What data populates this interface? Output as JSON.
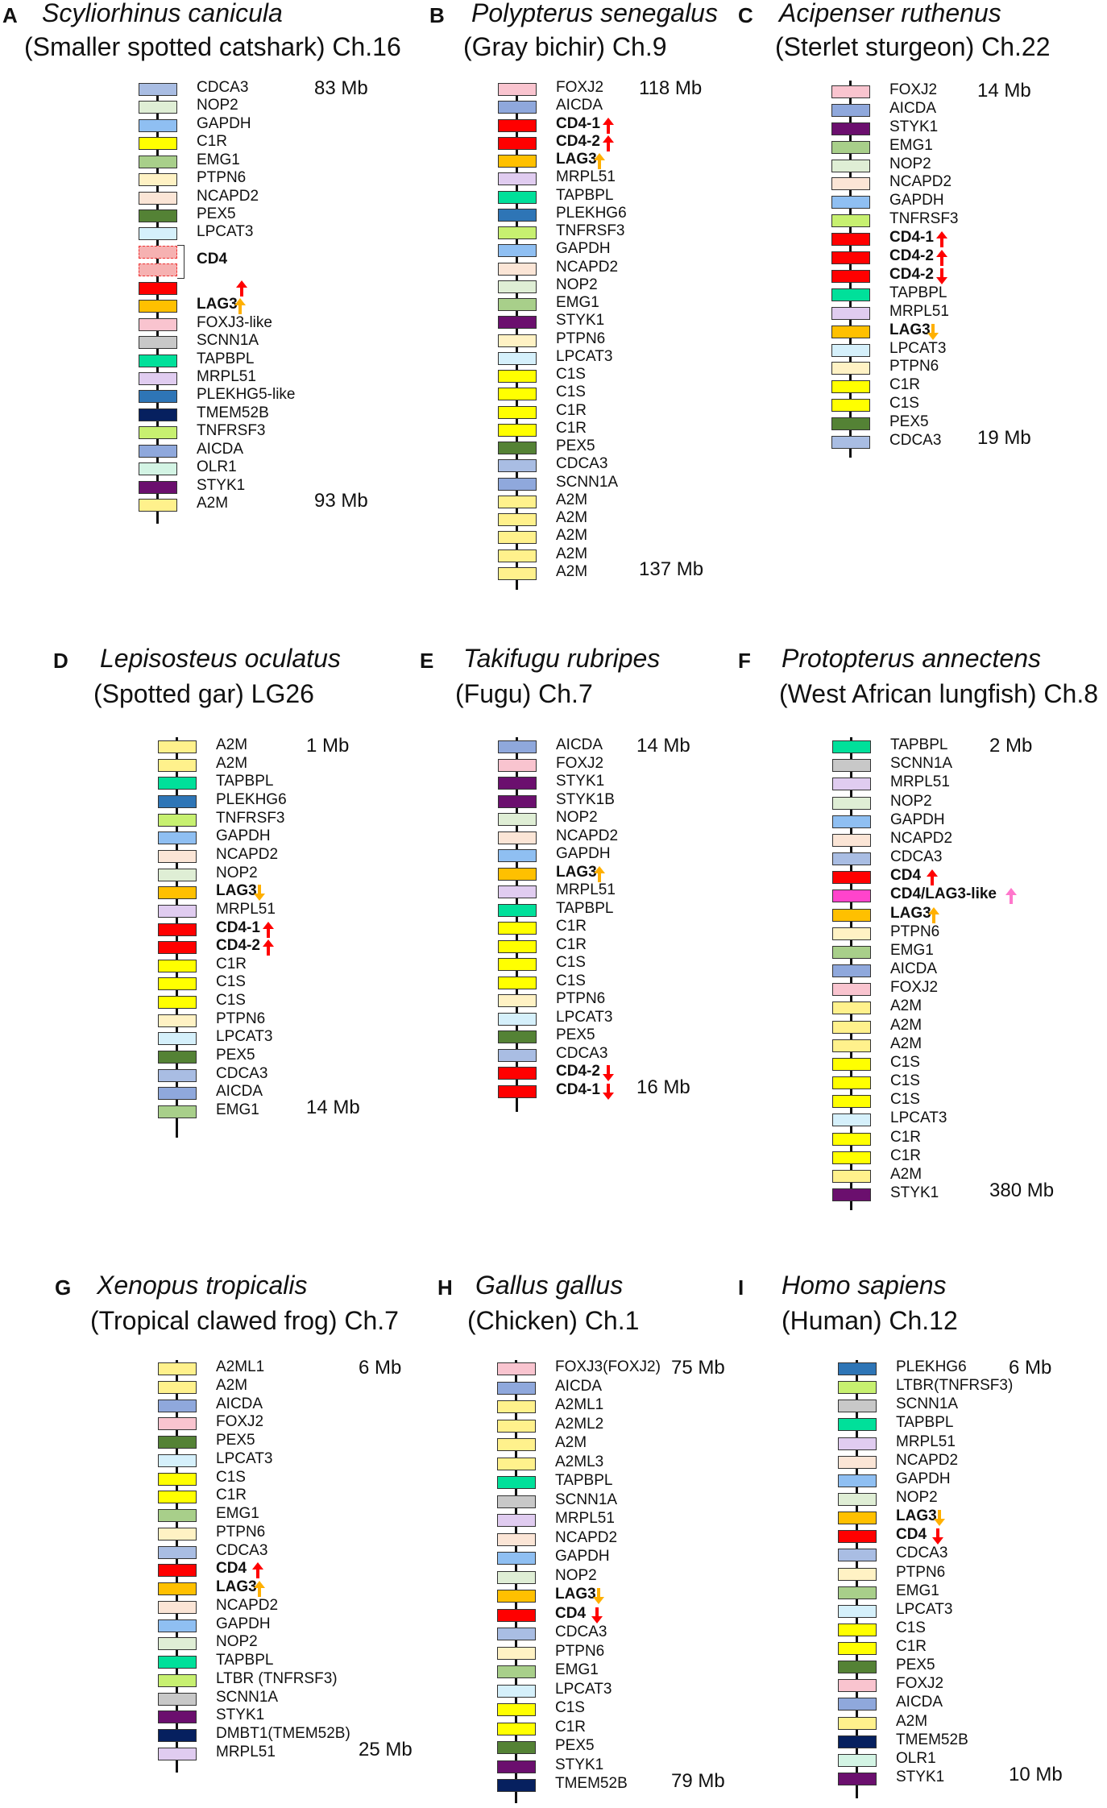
{
  "colors": {
    "CDCA3": "#a9bde3",
    "NOP2": "#dfeed5",
    "GAPDH": "#8fbff2",
    "C1R": "#ffff00",
    "C1S": "#ffff00",
    "EMG1": "#a8cf8a",
    "PTPN6": "#fff2c4",
    "NCAPD2": "#fbe5d6",
    "PEX5": "#548235",
    "LPCAT3": "#d5f0fb",
    "CD4": "#ff0000",
    "LAG3": "#ffc000",
    "FOXJ3": "#f9c4cf",
    "FOXJ2": "#f9c4cf",
    "SCNN1A": "#c8c8c8",
    "TAPBPL": "#00e09a",
    "MRPL51": "#e0ccf0",
    "PLEKHG": "#2e75b6",
    "TMEM52B": "#06205f",
    "TNFRSF3": "#c7f070",
    "AICDA": "#8fa8dc",
    "OLR1": "#d3f4e4",
    "STYK1": "#6b0f6e",
    "A2M": "#fff18c",
    "CD4LAG3": "#ff44cc",
    "DMBT1": "#06205f"
  },
  "arrow_colors": {
    "red": "#ff0000",
    "orange": "#ffb000",
    "pink": "#ff77cc"
  },
  "panels": [
    {
      "id": "A",
      "letter": "A",
      "species": "Scyliorhinus canicula",
      "common": "(Smaller spotted catshark)  Ch.16",
      "mb_top": "83 Mb",
      "mb_bottom": "93 Mb",
      "genes": [
        {
          "name": "CDCA3",
          "c": "CDCA3"
        },
        {
          "name": "NOP2",
          "c": "NOP2"
        },
        {
          "name": "GAPDH",
          "c": "GAPDH"
        },
        {
          "name": "C1R",
          "c": "C1R"
        },
        {
          "name": "EMG1",
          "c": "EMG1"
        },
        {
          "name": "PTPN6",
          "c": "PTPN6"
        },
        {
          "name": "NCAPD2",
          "c": "NCAPD2"
        },
        {
          "name": "PEX5",
          "c": "PEX5"
        },
        {
          "name": "LPCAT3",
          "c": "LPCAT3"
        },
        {
          "name": "",
          "c": "dashed"
        },
        {
          "name": "CD4",
          "c": "dashed",
          "bold": true
        },
        {
          "name": "",
          "c": "CD4",
          "arrow": "up",
          "ac": "red"
        },
        {
          "name": "LAG3",
          "c": "LAG3",
          "bold": true,
          "arrow": "up",
          "ac": "orange"
        },
        {
          "name": "FOXJ3-like",
          "c": "FOXJ3"
        },
        {
          "name": "SCNN1A",
          "c": "SCNN1A"
        },
        {
          "name": "TAPBPL",
          "c": "TAPBPL"
        },
        {
          "name": "MRPL51",
          "c": "MRPL51"
        },
        {
          "name": "PLEKHG5-like",
          "c": "PLEKHG"
        },
        {
          "name": "TMEM52B",
          "c": "TMEM52B"
        },
        {
          "name": "TNFRSF3",
          "c": "TNFRSF3"
        },
        {
          "name": "AICDA",
          "c": "AICDA"
        },
        {
          "name": "OLR1",
          "c": "OLR1"
        },
        {
          "name": "STYK1",
          "c": "STYK1"
        },
        {
          "name": "A2M",
          "c": "A2M"
        }
      ]
    },
    {
      "id": "B",
      "letter": "B",
      "species": "Polypterus senegalus",
      "common": "(Gray bichir) Ch.9",
      "mb_top": "118 Mb",
      "mb_bottom": "137 Mb",
      "genes": [
        {
          "name": "FOXJ2",
          "c": "FOXJ2"
        },
        {
          "name": "AICDA",
          "c": "AICDA"
        },
        {
          "name": "CD4-1",
          "c": "CD4",
          "bold": true,
          "arrow": "up",
          "ac": "red"
        },
        {
          "name": "CD4-2",
          "c": "CD4",
          "bold": true,
          "arrow": "up",
          "ac": "red"
        },
        {
          "name": "LAG3",
          "c": "LAG3",
          "bold": true,
          "arrow": "up",
          "ac": "orange"
        },
        {
          "name": "MRPL51",
          "c": "MRPL51"
        },
        {
          "name": "TAPBPL",
          "c": "TAPBPL"
        },
        {
          "name": "PLEKHG6",
          "c": "PLEKHG"
        },
        {
          "name": "TNFRSF3",
          "c": "TNFRSF3"
        },
        {
          "name": "GAPDH",
          "c": "GAPDH"
        },
        {
          "name": "NCAPD2",
          "c": "NCAPD2"
        },
        {
          "name": "NOP2",
          "c": "NOP2"
        },
        {
          "name": "EMG1",
          "c": "EMG1"
        },
        {
          "name": "STYK1",
          "c": "STYK1"
        },
        {
          "name": "PTPN6",
          "c": "PTPN6"
        },
        {
          "name": "LPCAT3",
          "c": "LPCAT3"
        },
        {
          "name": "C1S",
          "c": "C1S"
        },
        {
          "name": "C1S",
          "c": "C1S"
        },
        {
          "name": "C1R",
          "c": "C1R"
        },
        {
          "name": "C1R",
          "c": "C1R"
        },
        {
          "name": "PEX5",
          "c": "PEX5"
        },
        {
          "name": "CDCA3",
          "c": "CDCA3"
        },
        {
          "name": "SCNN1A",
          "c": "AICDA"
        },
        {
          "name": "A2M",
          "c": "A2M"
        },
        {
          "name": "A2M",
          "c": "A2M"
        },
        {
          "name": "A2M",
          "c": "A2M"
        },
        {
          "name": "A2M",
          "c": "A2M"
        },
        {
          "name": "A2M",
          "c": "A2M"
        }
      ]
    },
    {
      "id": "C",
      "letter": "C",
      "species": "Acipenser ruthenus",
      "common": "(Sterlet sturgeon) Ch.22",
      "mb_top": "14 Mb",
      "mb_bottom": "19 Mb",
      "genes": [
        {
          "name": "FOXJ2",
          "c": "FOXJ2"
        },
        {
          "name": "AICDA",
          "c": "AICDA"
        },
        {
          "name": "STYK1",
          "c": "STYK1"
        },
        {
          "name": "EMG1",
          "c": "EMG1"
        },
        {
          "name": "NOP2",
          "c": "NOP2"
        },
        {
          "name": "NCAPD2",
          "c": "NCAPD2"
        },
        {
          "name": "GAPDH",
          "c": "GAPDH"
        },
        {
          "name": "TNFRSF3",
          "c": "TNFRSF3"
        },
        {
          "name": "CD4-1",
          "c": "CD4",
          "bold": true,
          "arrow": "up",
          "ac": "red"
        },
        {
          "name": "CD4-2",
          "c": "CD4",
          "bold": true,
          "arrow": "up",
          "ac": "red"
        },
        {
          "name": "CD4-2",
          "c": "CD4",
          "bold": true,
          "arrow": "down",
          "ac": "red"
        },
        {
          "name": "TAPBPL",
          "c": "TAPBPL"
        },
        {
          "name": "MRPL51",
          "c": "MRPL51"
        },
        {
          "name": "LAG3",
          "c": "LAG3",
          "bold": true,
          "arrow": "down",
          "ac": "orange"
        },
        {
          "name": "LPCAT3",
          "c": "LPCAT3"
        },
        {
          "name": "PTPN6",
          "c": "PTPN6"
        },
        {
          "name": "C1R",
          "c": "C1R"
        },
        {
          "name": "C1S",
          "c": "C1S"
        },
        {
          "name": "PEX5",
          "c": "PEX5"
        },
        {
          "name": "CDCA3",
          "c": "CDCA3"
        }
      ]
    },
    {
      "id": "D",
      "letter": "D",
      "species": "Lepisosteus oculatus",
      "common": "(Spotted gar) LG26",
      "mb_top": "1 Mb",
      "mb_bottom": "14 Mb",
      "genes": [
        {
          "name": "A2M",
          "c": "A2M"
        },
        {
          "name": "A2M",
          "c": "A2M"
        },
        {
          "name": "TAPBPL",
          "c": "TAPBPL"
        },
        {
          "name": "PLEKHG6",
          "c": "PLEKHG"
        },
        {
          "name": "TNFRSF3",
          "c": "TNFRSF3"
        },
        {
          "name": "GAPDH",
          "c": "GAPDH"
        },
        {
          "name": "NCAPD2",
          "c": "NCAPD2"
        },
        {
          "name": "NOP2",
          "c": "NOP2"
        },
        {
          "name": "LAG3",
          "c": "LAG3",
          "bold": true,
          "arrow": "down",
          "ac": "orange"
        },
        {
          "name": "MRPL51",
          "c": "MRPL51"
        },
        {
          "name": "CD4-1",
          "c": "CD4",
          "bold": true,
          "arrow": "up",
          "ac": "red"
        },
        {
          "name": "CD4-2",
          "c": "CD4",
          "bold": true,
          "arrow": "up",
          "ac": "red"
        },
        {
          "name": "C1R",
          "c": "C1R"
        },
        {
          "name": "C1S",
          "c": "C1S"
        },
        {
          "name": "C1S",
          "c": "C1S"
        },
        {
          "name": "PTPN6",
          "c": "PTPN6"
        },
        {
          "name": "LPCAT3",
          "c": "LPCAT3"
        },
        {
          "name": "PEX5",
          "c": "PEX5"
        },
        {
          "name": "CDCA3",
          "c": "CDCA3"
        },
        {
          "name": "AICDA",
          "c": "AICDA"
        },
        {
          "name": "EMG1",
          "c": "EMG1"
        }
      ]
    },
    {
      "id": "E",
      "letter": "E",
      "species": "Takifugu rubripes",
      "common": "(Fugu) Ch.7",
      "mb_top": "14 Mb",
      "mb_bottom": "16 Mb",
      "genes": [
        {
          "name": "AICDA",
          "c": "AICDA"
        },
        {
          "name": "FOXJ2",
          "c": "FOXJ2"
        },
        {
          "name": "STYK1",
          "c": "STYK1"
        },
        {
          "name": "STYK1B",
          "c": "STYK1"
        },
        {
          "name": "NOP2",
          "c": "NOP2"
        },
        {
          "name": "NCAPD2",
          "c": "NCAPD2"
        },
        {
          "name": "GAPDH",
          "c": "GAPDH"
        },
        {
          "name": "LAG3",
          "c": "LAG3",
          "bold": true,
          "arrow": "up",
          "ac": "orange"
        },
        {
          "name": "MRPL51",
          "c": "MRPL51"
        },
        {
          "name": "TAPBPL",
          "c": "TAPBPL"
        },
        {
          "name": "C1R",
          "c": "C1R"
        },
        {
          "name": "C1R",
          "c": "C1R"
        },
        {
          "name": "C1S",
          "c": "C1S"
        },
        {
          "name": "C1S",
          "c": "C1S"
        },
        {
          "name": "PTPN6",
          "c": "PTPN6"
        },
        {
          "name": "LPCAT3",
          "c": "LPCAT3"
        },
        {
          "name": "PEX5",
          "c": "PEX5"
        },
        {
          "name": "CDCA3",
          "c": "CDCA3"
        },
        {
          "name": "CD4-2",
          "c": "CD4",
          "bold": true,
          "arrow": "down",
          "ac": "red"
        },
        {
          "name": "CD4-1",
          "c": "CD4",
          "bold": true,
          "arrow": "down",
          "ac": "red"
        }
      ]
    },
    {
      "id": "F",
      "letter": "F",
      "species": "Protopterus annectens",
      "common": "(West African lungfish)  Ch.8",
      "mb_top": "2 Mb",
      "mb_bottom": "380 Mb",
      "genes": [
        {
          "name": "TAPBPL",
          "c": "TAPBPL"
        },
        {
          "name": "SCNN1A",
          "c": "SCNN1A"
        },
        {
          "name": "MRPL51",
          "c": "MRPL51"
        },
        {
          "name": "NOP2",
          "c": "NOP2"
        },
        {
          "name": "GAPDH",
          "c": "GAPDH"
        },
        {
          "name": "NCAPD2",
          "c": "NCAPD2"
        },
        {
          "name": "CDCA3",
          "c": "CDCA3"
        },
        {
          "name": "CD4",
          "c": "CD4",
          "bold": true,
          "arrow": "up",
          "ac": "red"
        },
        {
          "name": "CD4/LAG3-like",
          "c": "CD4LAG3",
          "bold": true,
          "arrow": "up",
          "ac": "pink"
        },
        {
          "name": "LAG3",
          "c": "LAG3",
          "bold": true,
          "arrow": "up",
          "ac": "orange"
        },
        {
          "name": "PTPN6",
          "c": "PTPN6"
        },
        {
          "name": "EMG1",
          "c": "EMG1"
        },
        {
          "name": "AICDA",
          "c": "AICDA"
        },
        {
          "name": "FOXJ2",
          "c": "FOXJ2"
        },
        {
          "name": "A2M",
          "c": "A2M"
        },
        {
          "name": "A2M",
          "c": "A2M"
        },
        {
          "name": "A2M",
          "c": "A2M"
        },
        {
          "name": "C1S",
          "c": "C1S"
        },
        {
          "name": "C1S",
          "c": "C1S"
        },
        {
          "name": "C1S",
          "c": "C1S"
        },
        {
          "name": "LPCAT3",
          "c": "LPCAT3"
        },
        {
          "name": "C1R",
          "c": "C1R"
        },
        {
          "name": "C1R",
          "c": "C1R"
        },
        {
          "name": "A2M",
          "c": "A2M"
        },
        {
          "name": "STYK1",
          "c": "STYK1"
        }
      ]
    },
    {
      "id": "G",
      "letter": "G",
      "species": "Xenopus tropicalis",
      "common": "(Tropical clawed frog) Ch.7",
      "mb_top": "6 Mb",
      "mb_bottom": "25 Mb",
      "genes": [
        {
          "name": "A2ML1",
          "c": "A2M"
        },
        {
          "name": "A2M",
          "c": "A2M"
        },
        {
          "name": "AICDA",
          "c": "AICDA"
        },
        {
          "name": "FOXJ2",
          "c": "FOXJ2"
        },
        {
          "name": "PEX5",
          "c": "PEX5"
        },
        {
          "name": "LPCAT3",
          "c": "LPCAT3"
        },
        {
          "name": "C1S",
          "c": "C1S"
        },
        {
          "name": "C1R",
          "c": "C1R"
        },
        {
          "name": "EMG1",
          "c": "EMG1"
        },
        {
          "name": "PTPN6",
          "c": "PTPN6"
        },
        {
          "name": "CDCA3",
          "c": "CDCA3"
        },
        {
          "name": "CD4",
          "c": "CD4",
          "bold": true,
          "arrow": "up",
          "ac": "red"
        },
        {
          "name": "LAG3",
          "c": "LAG3",
          "bold": true,
          "arrow": "up",
          "ac": "orange"
        },
        {
          "name": "NCAPD2",
          "c": "NCAPD2"
        },
        {
          "name": "GAPDH",
          "c": "GAPDH"
        },
        {
          "name": "NOP2",
          "c": "NOP2"
        },
        {
          "name": "TAPBPL",
          "c": "TAPBPL"
        },
        {
          "name": "LTBR (TNFRSF3)",
          "c": "TNFRSF3"
        },
        {
          "name": "SCNN1A",
          "c": "SCNN1A"
        },
        {
          "name": "STYK1",
          "c": "STYK1"
        },
        {
          "name": "DMBT1(TMEM52B)",
          "c": "DMBT1"
        },
        {
          "name": "MRPL51",
          "c": "MRPL51"
        }
      ]
    },
    {
      "id": "H",
      "letter": "H",
      "species": "Gallus gallus",
      "common": "(Chicken) Ch.1",
      "mb_top": "75 Mb",
      "mb_bottom": "79 Mb",
      "genes": [
        {
          "name": "FOXJ3(FOXJ2)",
          "c": "FOXJ3"
        },
        {
          "name": "AICDA",
          "c": "AICDA"
        },
        {
          "name": "A2ML1",
          "c": "A2M"
        },
        {
          "name": "A2ML2",
          "c": "A2M"
        },
        {
          "name": "A2M",
          "c": "A2M"
        },
        {
          "name": "A2ML3",
          "c": "A2M"
        },
        {
          "name": "TAPBPL",
          "c": "TAPBPL"
        },
        {
          "name": "SCNN1A",
          "c": "SCNN1A"
        },
        {
          "name": "MRPL51",
          "c": "MRPL51"
        },
        {
          "name": "NCAPD2",
          "c": "NCAPD2"
        },
        {
          "name": "GAPDH",
          "c": "GAPDH"
        },
        {
          "name": "NOP2",
          "c": "NOP2"
        },
        {
          "name": "LAG3",
          "c": "LAG3",
          "bold": true,
          "arrow": "down",
          "ac": "orange"
        },
        {
          "name": "CD4",
          "c": "CD4",
          "bold": true,
          "arrow": "down",
          "ac": "red"
        },
        {
          "name": "CDCA3",
          "c": "CDCA3"
        },
        {
          "name": "PTPN6",
          "c": "PTPN6"
        },
        {
          "name": "EMG1",
          "c": "EMG1"
        },
        {
          "name": "LPCAT3",
          "c": "LPCAT3"
        },
        {
          "name": "C1S",
          "c": "C1S"
        },
        {
          "name": "C1R",
          "c": "C1R"
        },
        {
          "name": "PEX5",
          "c": "PEX5"
        },
        {
          "name": "STYK1",
          "c": "STYK1"
        },
        {
          "name": "TMEM52B",
          "c": "TMEM52B"
        }
      ]
    },
    {
      "id": "I",
      "letter": "I",
      "species": "Homo sapiens",
      "common": "(Human) Ch.12",
      "mb_top": "6 Mb",
      "mb_bottom": "10 Mb",
      "genes": [
        {
          "name": "PLEKHG6",
          "c": "PLEKHG"
        },
        {
          "name": "LTBR(TNFRSF3)",
          "c": "TNFRSF3"
        },
        {
          "name": "SCNN1A",
          "c": "SCNN1A"
        },
        {
          "name": "TAPBPL",
          "c": "TAPBPL"
        },
        {
          "name": "MRPL51",
          "c": "MRPL51"
        },
        {
          "name": "NCAPD2",
          "c": "NCAPD2"
        },
        {
          "name": "GAPDH",
          "c": "GAPDH"
        },
        {
          "name": "NOP2",
          "c": "NOP2"
        },
        {
          "name": "LAG3",
          "c": "LAG3",
          "bold": true,
          "arrow": "down",
          "ac": "orange"
        },
        {
          "name": "CD4",
          "c": "CD4",
          "bold": true,
          "arrow": "down",
          "ac": "red"
        },
        {
          "name": "CDCA3",
          "c": "CDCA3"
        },
        {
          "name": "PTPN6",
          "c": "PTPN6"
        },
        {
          "name": "EMG1",
          "c": "EMG1"
        },
        {
          "name": "LPCAT3",
          "c": "LPCAT3"
        },
        {
          "name": "C1S",
          "c": "C1S"
        },
        {
          "name": "C1R",
          "c": "C1R"
        },
        {
          "name": "PEX5",
          "c": "PEX5"
        },
        {
          "name": "FOXJ2",
          "c": "FOXJ2"
        },
        {
          "name": "AICDA",
          "c": "AICDA"
        },
        {
          "name": "A2M",
          "c": "A2M"
        },
        {
          "name": "TMEM52B",
          "c": "TMEM52B"
        },
        {
          "name": "OLR1",
          "c": "OLR1"
        },
        {
          "name": "STYK1",
          "c": "STYK1"
        }
      ]
    }
  ]
}
